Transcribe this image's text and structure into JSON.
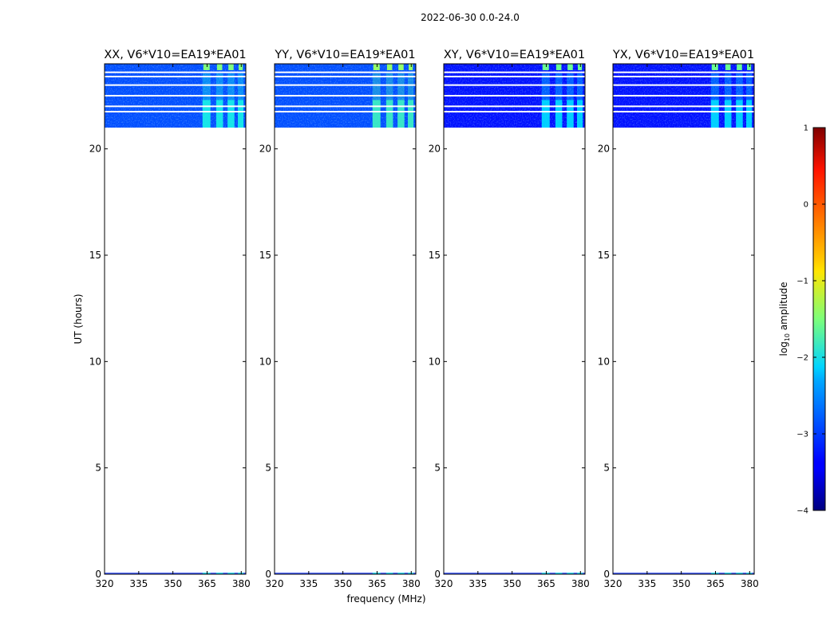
{
  "figure": {
    "suptitle": "2022-06-30 0.0-24.0",
    "xlabel": "frequency (MHz)",
    "ylabel": "UT (hours)"
  },
  "colorbar": {
    "label_prefix": "log",
    "label_sub": "10",
    "label_suffix": " amplitude",
    "colormap": "jet",
    "range": [
      -4,
      1
    ],
    "ticks": [
      1,
      0,
      -1,
      -2,
      -3,
      -4
    ],
    "tick_labels": [
      "1",
      "0",
      "−1",
      "−2",
      "−3",
      "−4"
    ]
  },
  "chart_data": {
    "type": "heatmap",
    "xlim": [
      320,
      382
    ],
    "ylim": [
      0,
      24
    ],
    "x_ticks": [
      320,
      335,
      350,
      365,
      380
    ],
    "x_tick_labels": [
      "320",
      "335",
      "350",
      "365",
      "380"
    ],
    "y_ticks": [
      0,
      5,
      10,
      15,
      20
    ],
    "y_tick_labels": [
      "0",
      "5",
      "10",
      "15",
      "20"
    ],
    "data_coverage_ut": [
      [
        21.0,
        24.0
      ]
    ],
    "flagged_ut_rows": [
      21.75,
      22.0,
      22.5,
      23.0,
      23.4,
      23.6
    ],
    "rfi_bands_mhz": [
      [
        363,
        366.5
      ],
      [
        369,
        372
      ],
      [
        374,
        377
      ],
      [
        378.5,
        381
      ]
    ],
    "panels": [
      {
        "title": "XX, V6*V10=EA19*EA01",
        "background_log10_amp": -3.0,
        "rfi_log10_amp": -2.0,
        "rfi_top_log10_amp": -1.5
      },
      {
        "title": "YY, V6*V10=EA19*EA01",
        "background_log10_amp": -3.0,
        "rfi_log10_amp": -1.8,
        "rfi_top_log10_amp": -1.4
      },
      {
        "title": "XY, V6*V10=EA19*EA01",
        "background_log10_amp": -3.3,
        "rfi_log10_amp": -2.2,
        "rfi_top_log10_amp": -1.6
      },
      {
        "title": "YX, V6*V10=EA19*EA01",
        "background_log10_amp": -3.3,
        "rfi_log10_amp": -2.2,
        "rfi_top_log10_amp": -1.6
      }
    ]
  }
}
